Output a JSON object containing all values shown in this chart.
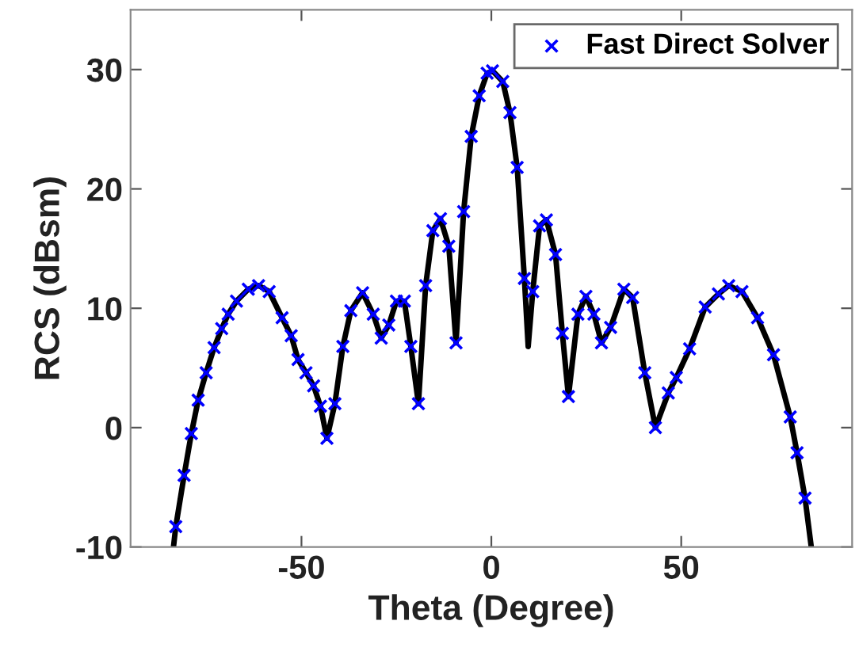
{
  "chart_data": {
    "type": "line",
    "xlabel": "Theta (Degree)",
    "ylabel": "RCS (dBsm)",
    "xlim": [
      -95,
      95
    ],
    "ylim": [
      -10,
      35
    ],
    "xticks": [
      -50,
      0,
      50
    ],
    "yticks": [
      -10,
      0,
      10,
      20,
      30
    ],
    "grid": false,
    "legend": "top right",
    "x": [
      -83.7,
      -83.1,
      -80.9,
      -79.0,
      -77.2,
      -75.1,
      -73.0,
      -71.0,
      -69.3,
      -67.1,
      -64.0,
      -61.3,
      -58.5,
      -55.1,
      -52.7,
      -50.9,
      -48.8,
      -46.8,
      -45.0,
      -43.3,
      -41.2,
      -39.1,
      -37.0,
      -33.9,
      -31.1,
      -29.0,
      -27.0,
      -25.0,
      -22.9,
      -21.2,
      -19.2,
      -17.3,
      -15.4,
      -13.4,
      -11.2,
      -9.3,
      -7.3,
      -5.3,
      -3.2,
      -1.1,
      0.3,
      3.0,
      4.9,
      6.8,
      8.7,
      9.7,
      10.9,
      12.7,
      14.5,
      16.9,
      18.7,
      20.3,
      22.8,
      24.9,
      27.0,
      29.0,
      31.4,
      34.9,
      37.2,
      40.4,
      43.2,
      46.6,
      48.7,
      52.2,
      56.3,
      59.8,
      62.5,
      66.0,
      70.1,
      74.3,
      78.7,
      80.5,
      82.6,
      84.2
    ],
    "series": [
      {
        "color": "#000000",
        "marker": "none",
        "line_style": "solid",
        "values": [
          -10.0,
          -8.3,
          -4.0,
          -0.5,
          2.3,
          4.6,
          6.7,
          8.3,
          9.5,
          10.6,
          11.6,
          11.9,
          11.4,
          9.2,
          7.7,
          5.7,
          4.6,
          3.5,
          1.8,
          -0.9,
          2.0,
          6.8,
          9.8,
          11.3,
          9.5,
          7.5,
          8.6,
          10.6,
          10.6,
          6.8,
          2.0,
          11.9,
          16.5,
          17.5,
          15.2,
          7.1,
          18.1,
          24.4,
          27.8,
          29.7,
          29.9,
          29.0,
          26.4,
          21.8,
          12.5,
          6.8,
          11.4,
          16.9,
          17.4,
          14.5,
          7.9,
          2.6,
          9.5,
          11.0,
          9.5,
          7.1,
          8.4,
          11.6,
          10.9,
          4.6,
          0.0,
          2.9,
          4.2,
          6.6,
          10.1,
          11.2,
          11.9,
          11.4,
          9.2,
          6.1,
          0.9,
          -2.1,
          -5.9,
          -9.9
        ]
      },
      {
        "type": "scatter",
        "name": "Fast Direct Solver",
        "color": "#0000ff",
        "marker": "cross",
        "values": [
          null,
          -8.3,
          -4.0,
          -0.5,
          2.3,
          4.6,
          6.7,
          8.3,
          9.5,
          10.6,
          11.6,
          11.9,
          11.4,
          9.2,
          7.7,
          5.7,
          4.6,
          3.5,
          1.8,
          -0.9,
          2.0,
          6.8,
          9.8,
          11.3,
          9.5,
          7.5,
          8.6,
          10.6,
          10.6,
          6.8,
          2.0,
          11.9,
          16.5,
          17.5,
          15.2,
          7.1,
          18.1,
          24.4,
          27.8,
          29.7,
          29.9,
          29.0,
          26.4,
          21.8,
          12.5,
          null,
          11.4,
          16.9,
          17.4,
          14.5,
          7.9,
          2.6,
          9.5,
          11.0,
          9.5,
          7.1,
          8.4,
          11.6,
          10.9,
          4.6,
          0.0,
          2.9,
          4.2,
          6.6,
          10.1,
          11.2,
          11.9,
          11.4,
          9.2,
          6.1,
          0.9,
          -2.1,
          -5.9,
          null
        ]
      }
    ]
  }
}
